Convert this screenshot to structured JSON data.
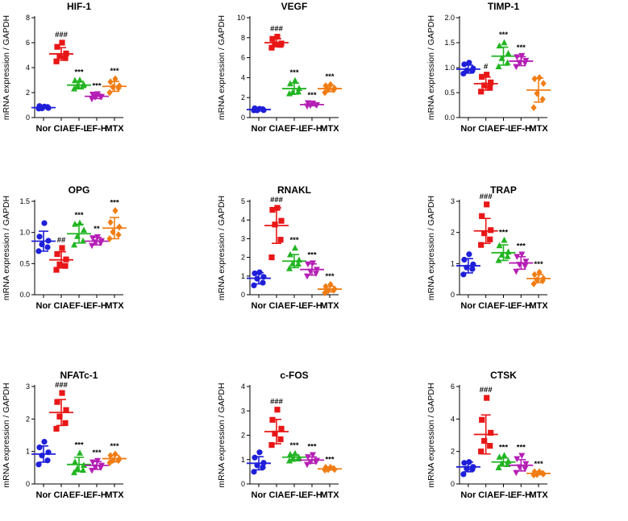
{
  "chart_data": [
    {
      "type": "scatter",
      "title": "HIF-1",
      "ylabel": "mRNA expression / GAPDH",
      "ylim": [
        0,
        8
      ],
      "yticks": [
        0,
        2,
        4,
        6,
        8
      ],
      "ytick_labels": [
        "0",
        "2",
        "4",
        "6",
        "8"
      ],
      "categories": [
        "Nor",
        "CIA",
        "EF-L",
        "EF-H",
        "MTX"
      ],
      "series": [
        {
          "name": "Nor",
          "color": "#1f1fd9",
          "marker": "circle",
          "mean": 0.8,
          "sd": 0.08,
          "points": [
            0.72,
            0.78,
            0.8,
            0.83,
            0.86,
            0.88
          ],
          "sig": ""
        },
        {
          "name": "CIA",
          "color": "#e81717",
          "marker": "square",
          "mean": 5.1,
          "sd": 0.5,
          "points": [
            4.5,
            4.7,
            5.0,
            5.2,
            5.6,
            6.0
          ],
          "sig": "###"
        },
        {
          "name": "EF-L",
          "color": "#22b522",
          "marker": "triangle",
          "mean": 2.6,
          "sd": 0.3,
          "points": [
            2.3,
            2.5,
            2.6,
            2.7,
            2.9,
            3.0
          ],
          "sig": "***"
        },
        {
          "name": "EF-H",
          "color": "#b51fb5",
          "marker": "triangle-down",
          "mean": 1.7,
          "sd": 0.18,
          "points": [
            1.5,
            1.6,
            1.7,
            1.75,
            1.8,
            1.9
          ],
          "sig": "***"
        },
        {
          "name": "MTX",
          "color": "#f07d14",
          "marker": "diamond",
          "mean": 2.5,
          "sd": 0.4,
          "points": [
            2.0,
            2.3,
            2.5,
            2.6,
            2.8,
            3.1
          ],
          "sig": "***"
        }
      ]
    },
    {
      "type": "scatter",
      "title": "VEGF",
      "ylabel": "mRNA expression / GAPDH",
      "ylim": [
        0,
        10
      ],
      "yticks": [
        0,
        2,
        4,
        6,
        8,
        10
      ],
      "ytick_labels": [
        "0",
        "2",
        "4",
        "6",
        "8",
        "10"
      ],
      "categories": [
        "Nor",
        "CIA",
        "EF-L",
        "EF-H",
        "MTX"
      ],
      "series": [
        {
          "name": "Nor",
          "color": "#1f1fd9",
          "marker": "circle",
          "mean": 0.8,
          "sd": 0.07,
          "points": [
            0.72,
            0.76,
            0.8,
            0.82,
            0.85,
            0.88
          ],
          "sig": ""
        },
        {
          "name": "CIA",
          "color": "#e81717",
          "marker": "square",
          "mean": 7.5,
          "sd": 0.4,
          "points": [
            7.0,
            7.2,
            7.4,
            7.5,
            7.8,
            8.1
          ],
          "sig": "###"
        },
        {
          "name": "EF-L",
          "color": "#22b522",
          "marker": "triangle",
          "mean": 2.9,
          "sd": 0.55,
          "points": [
            2.4,
            2.5,
            2.6,
            3.0,
            3.3,
            3.7
          ],
          "sig": "***"
        },
        {
          "name": "EF-H",
          "color": "#b51fb5",
          "marker": "triangle-down",
          "mean": 1.3,
          "sd": 0.12,
          "points": [
            1.15,
            1.2,
            1.3,
            1.35,
            1.4,
            1.45
          ],
          "sig": "***"
        },
        {
          "name": "MTX",
          "color": "#f07d14",
          "marker": "diamond",
          "mean": 2.9,
          "sd": 0.3,
          "points": [
            2.5,
            2.7,
            2.9,
            3.0,
            3.1,
            3.3
          ],
          "sig": "***"
        }
      ]
    },
    {
      "type": "scatter",
      "title": "TIMP-1",
      "ylabel": "mRNA expression / GAPDH",
      "ylim": [
        0,
        2.0
      ],
      "yticks": [
        0,
        0.5,
        1.0,
        1.5,
        2.0
      ],
      "ytick_labels": [
        "0.0",
        "0.5",
        "1.0",
        "1.5",
        "2.0"
      ],
      "categories": [
        "Nor",
        "CIA",
        "EF-L",
        "EF-H",
        "MTX"
      ],
      "series": [
        {
          "name": "Nor",
          "color": "#1f1fd9",
          "marker": "circle",
          "mean": 0.97,
          "sd": 0.08,
          "points": [
            0.88,
            0.92,
            0.96,
            1.0,
            1.05,
            1.1
          ],
          "sig": ""
        },
        {
          "name": "CIA",
          "color": "#e81717",
          "marker": "square",
          "mean": 0.68,
          "sd": 0.13,
          "points": [
            0.52,
            0.58,
            0.66,
            0.72,
            0.8,
            0.86
          ],
          "sig": "#"
        },
        {
          "name": "EF-L",
          "color": "#22b522",
          "marker": "triangle",
          "mean": 1.23,
          "sd": 0.18,
          "points": [
            1.02,
            1.08,
            1.2,
            1.3,
            1.42,
            1.5
          ],
          "sig": "***"
        },
        {
          "name": "EF-H",
          "color": "#b51fb5",
          "marker": "triangle-down",
          "mean": 1.13,
          "sd": 0.09,
          "points": [
            1.02,
            1.08,
            1.12,
            1.16,
            1.2,
            1.24
          ],
          "sig": "***"
        },
        {
          "name": "MTX",
          "color": "#f07d14",
          "marker": "diamond",
          "mean": 0.55,
          "sd": 0.24,
          "points": [
            0.2,
            0.35,
            0.5,
            0.7,
            0.76,
            0.8
          ],
          "sig": ""
        }
      ]
    },
    {
      "type": "scatter",
      "title": "OPG",
      "ylabel": "mRNA expression / GAPDH",
      "ylim": [
        0,
        1.5
      ],
      "yticks": [
        0,
        0.5,
        1.0,
        1.5
      ],
      "ytick_labels": [
        "0.0",
        "0.5",
        "1.0",
        "1.5"
      ],
      "categories": [
        "Nor",
        "CIA",
        "EF-L",
        "EF-H",
        "MTX"
      ],
      "series": [
        {
          "name": "Nor",
          "color": "#1f1fd9",
          "marker": "circle",
          "mean": 0.86,
          "sd": 0.16,
          "points": [
            0.7,
            0.75,
            0.82,
            0.88,
            0.92,
            1.15
          ],
          "sig": ""
        },
        {
          "name": "CIA",
          "color": "#e81717",
          "marker": "square",
          "mean": 0.56,
          "sd": 0.13,
          "points": [
            0.4,
            0.45,
            0.5,
            0.58,
            0.64,
            0.75
          ],
          "sig": "##"
        },
        {
          "name": "EF-L",
          "color": "#22b522",
          "marker": "triangle",
          "mean": 0.98,
          "sd": 0.15,
          "points": [
            0.8,
            0.85,
            0.95,
            1.05,
            1.12,
            1.15
          ],
          "sig": "***"
        },
        {
          "name": "EF-H",
          "color": "#b51fb5",
          "marker": "triangle-down",
          "mean": 0.86,
          "sd": 0.06,
          "points": [
            0.79,
            0.82,
            0.86,
            0.88,
            0.9,
            0.93
          ],
          "sig": "**"
        },
        {
          "name": "MTX",
          "color": "#f07d14",
          "marker": "diamond",
          "mean": 1.07,
          "sd": 0.17,
          "points": [
            0.9,
            0.95,
            1.02,
            1.1,
            1.15,
            1.35
          ],
          "sig": "***"
        }
      ]
    },
    {
      "type": "scatter",
      "title": "RNAKL",
      "ylabel": "mRNA expression / GAPDH",
      "ylim": [
        0,
        5
      ],
      "yticks": [
        0,
        1,
        2,
        3,
        4,
        5
      ],
      "ytick_labels": [
        "0",
        "1",
        "2",
        "3",
        "4",
        "5"
      ],
      "categories": [
        "Nor",
        "CIA",
        "EF-L",
        "EF-H",
        "MTX"
      ],
      "series": [
        {
          "name": "Nor",
          "color": "#1f1fd9",
          "marker": "circle",
          "mean": 0.88,
          "sd": 0.3,
          "points": [
            0.5,
            0.6,
            0.9,
            1.0,
            1.1,
            1.2
          ],
          "sig": ""
        },
        {
          "name": "CIA",
          "color": "#e81717",
          "marker": "square",
          "mean": 3.7,
          "sd": 0.95,
          "points": [
            2.0,
            2.9,
            3.8,
            4.0,
            4.5,
            4.65
          ],
          "sig": "###"
        },
        {
          "name": "EF-L",
          "color": "#22b522",
          "marker": "triangle",
          "mean": 1.8,
          "sd": 0.35,
          "points": [
            1.4,
            1.6,
            1.7,
            1.9,
            2.1,
            2.5
          ],
          "sig": "***"
        },
        {
          "name": "EF-H",
          "color": "#b51fb5",
          "marker": "triangle-down",
          "mean": 1.35,
          "sd": 0.3,
          "points": [
            1.0,
            1.1,
            1.3,
            1.4,
            1.6,
            1.7
          ],
          "sig": "***"
        },
        {
          "name": "MTX",
          "color": "#f07d14",
          "marker": "diamond",
          "mean": 0.3,
          "sd": 0.15,
          "points": [
            0.1,
            0.2,
            0.25,
            0.35,
            0.4,
            0.55
          ],
          "sig": "***"
        }
      ]
    },
    {
      "type": "scatter",
      "title": "TRAP",
      "ylabel": "mRNA expression / GAPDH",
      "ylim": [
        0,
        3
      ],
      "yticks": [
        0,
        1,
        2,
        3
      ],
      "ytick_labels": [
        "0",
        "1",
        "2",
        "3"
      ],
      "categories": [
        "Nor",
        "CIA",
        "EF-L",
        "EF-H",
        "MTX"
      ],
      "series": [
        {
          "name": "Nor",
          "color": "#1f1fd9",
          "marker": "circle",
          "mean": 0.93,
          "sd": 0.23,
          "points": [
            0.65,
            0.8,
            0.9,
            1.0,
            1.1,
            1.3
          ],
          "sig": ""
        },
        {
          "name": "CIA",
          "color": "#e81717",
          "marker": "square",
          "mean": 2.05,
          "sd": 0.4,
          "points": [
            1.6,
            1.75,
            2.0,
            2.1,
            2.5,
            2.9
          ],
          "sig": "###"
        },
        {
          "name": "EF-L",
          "color": "#22b522",
          "marker": "triangle",
          "mean": 1.35,
          "sd": 0.25,
          "points": [
            1.1,
            1.2,
            1.3,
            1.4,
            1.55,
            1.75
          ],
          "sig": "***"
        },
        {
          "name": "EF-H",
          "color": "#b51fb5",
          "marker": "triangle-down",
          "mean": 1.02,
          "sd": 0.2,
          "points": [
            0.75,
            0.9,
            1.0,
            1.1,
            1.2,
            1.3
          ],
          "sig": "***"
        },
        {
          "name": "MTX",
          "color": "#f07d14",
          "marker": "diamond",
          "mean": 0.52,
          "sd": 0.13,
          "points": [
            0.35,
            0.42,
            0.5,
            0.55,
            0.62,
            0.72
          ],
          "sig": "***"
        }
      ]
    },
    {
      "type": "scatter",
      "title": "NFATc-1",
      "ylabel": "mRNA expression / GAPDH",
      "ylim": [
        0,
        3
      ],
      "yticks": [
        0,
        1,
        2,
        3
      ],
      "ytick_labels": [
        "0",
        "1",
        "2",
        "3"
      ],
      "categories": [
        "Nor",
        "CIA",
        "EF-L",
        "EF-H",
        "MTX"
      ],
      "series": [
        {
          "name": "Nor",
          "color": "#1f1fd9",
          "marker": "circle",
          "mean": 0.92,
          "sd": 0.25,
          "points": [
            0.6,
            0.7,
            0.9,
            1.0,
            1.1,
            1.3
          ],
          "sig": ""
        },
        {
          "name": "CIA",
          "color": "#e81717",
          "marker": "square",
          "mean": 2.2,
          "sd": 0.4,
          "points": [
            1.7,
            1.85,
            2.1,
            2.3,
            2.5,
            2.8
          ],
          "sig": "###"
        },
        {
          "name": "EF-L",
          "color": "#22b522",
          "marker": "triangle",
          "mean": 0.6,
          "sd": 0.22,
          "points": [
            0.35,
            0.4,
            0.5,
            0.6,
            0.65,
            0.95
          ],
          "sig": "***"
        },
        {
          "name": "EF-H",
          "color": "#b51fb5",
          "marker": "triangle-down",
          "mean": 0.57,
          "sd": 0.12,
          "points": [
            0.42,
            0.48,
            0.55,
            0.6,
            0.65,
            0.72
          ],
          "sig": "***"
        },
        {
          "name": "MTX",
          "color": "#f07d14",
          "marker": "diamond",
          "mean": 0.78,
          "sd": 0.1,
          "points": [
            0.65,
            0.7,
            0.75,
            0.8,
            0.85,
            0.92
          ],
          "sig": "***"
        }
      ]
    },
    {
      "type": "scatter",
      "title": "c-FOS",
      "ylabel": "mRNA expression / GAPDH",
      "ylim": [
        0,
        4
      ],
      "yticks": [
        0,
        1,
        2,
        3,
        4
      ],
      "ytick_labels": [
        "0",
        "1",
        "2",
        "3",
        "4"
      ],
      "categories": [
        "Nor",
        "CIA",
        "EF-L",
        "EF-H",
        "MTX"
      ],
      "series": [
        {
          "name": "Nor",
          "color": "#1f1fd9",
          "marker": "circle",
          "mean": 0.85,
          "sd": 0.27,
          "points": [
            0.5,
            0.65,
            0.8,
            0.9,
            1.05,
            1.3
          ],
          "sig": ""
        },
        {
          "name": "CIA",
          "color": "#e81717",
          "marker": "square",
          "mean": 2.15,
          "sd": 0.5,
          "points": [
            1.6,
            1.8,
            2.1,
            2.3,
            2.6,
            3.05
          ],
          "sig": "###"
        },
        {
          "name": "EF-L",
          "color": "#22b522",
          "marker": "triangle",
          "mean": 1.1,
          "sd": 0.1,
          "points": [
            0.95,
            1.0,
            1.05,
            1.1,
            1.18,
            1.25
          ],
          "sig": "***"
        },
        {
          "name": "EF-H",
          "color": "#b51fb5",
          "marker": "triangle-down",
          "mean": 0.98,
          "sd": 0.13,
          "points": [
            0.8,
            0.88,
            0.95,
            1.0,
            1.08,
            1.2
          ],
          "sig": "***"
        },
        {
          "name": "MTX",
          "color": "#f07d14",
          "marker": "diamond",
          "mean": 0.62,
          "sd": 0.04,
          "points": [
            0.57,
            0.6,
            0.62,
            0.63,
            0.65,
            0.68
          ],
          "sig": "***"
        }
      ]
    },
    {
      "type": "scatter",
      "title": "CTSK",
      "ylabel": "mRNA expression / GAPDH",
      "ylim": [
        0,
        6
      ],
      "yticks": [
        0,
        2,
        4,
        6
      ],
      "ytick_labels": [
        "0",
        "2",
        "4",
        "6"
      ],
      "categories": [
        "Nor",
        "CIA",
        "EF-L",
        "EF-H",
        "MTX"
      ],
      "series": [
        {
          "name": "Nor",
          "color": "#1f1fd9",
          "marker": "circle",
          "mean": 1.05,
          "sd": 0.3,
          "points": [
            0.6,
            0.85,
            1.0,
            1.1,
            1.25,
            1.35
          ],
          "sig": ""
        },
        {
          "name": "CIA",
          "color": "#e81717",
          "marker": "square",
          "mean": 3.05,
          "sd": 1.2,
          "points": [
            2.0,
            2.3,
            2.7,
            3.2,
            3.9,
            5.3
          ],
          "sig": "###"
        },
        {
          "name": "EF-L",
          "color": "#22b522",
          "marker": "triangle",
          "mean": 1.35,
          "sd": 0.25,
          "points": [
            1.0,
            1.15,
            1.3,
            1.45,
            1.6,
            1.75
          ],
          "sig": "***"
        },
        {
          "name": "EF-H",
          "color": "#b51fb5",
          "marker": "triangle-down",
          "mean": 1.15,
          "sd": 0.35,
          "points": [
            0.7,
            0.9,
            1.1,
            1.3,
            1.5,
            1.75
          ],
          "sig": "***"
        },
        {
          "name": "MTX",
          "color": "#f07d14",
          "marker": "diamond",
          "mean": 0.65,
          "sd": 0.08,
          "points": [
            0.55,
            0.6,
            0.63,
            0.67,
            0.7,
            0.75
          ],
          "sig": "***"
        }
      ]
    }
  ]
}
